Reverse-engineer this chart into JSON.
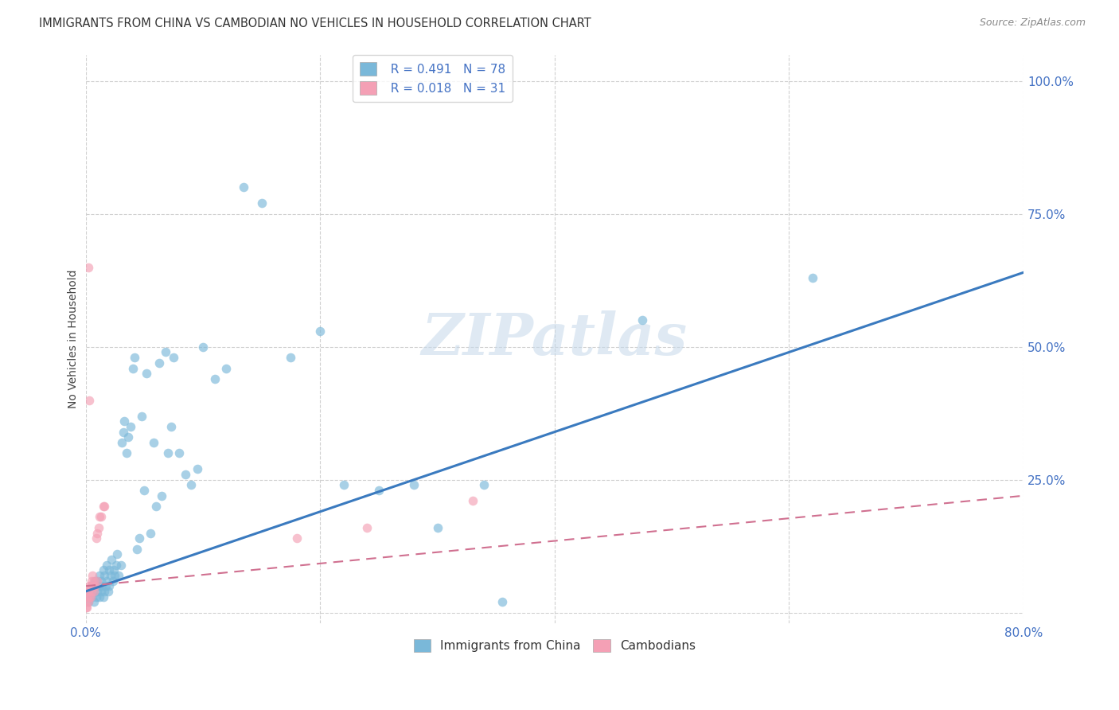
{
  "title": "IMMIGRANTS FROM CHINA VS CAMBODIAN NO VEHICLES IN HOUSEHOLD CORRELATION CHART",
  "source": "Source: ZipAtlas.com",
  "ylabel": "No Vehicles in Household",
  "xlim": [
    0.0,
    0.8
  ],
  "ylim": [
    -0.02,
    1.05
  ],
  "yticks": [
    0.0,
    0.25,
    0.5,
    0.75,
    1.0
  ],
  "ytick_labels": [
    "",
    "25.0%",
    "50.0%",
    "75.0%",
    "100.0%"
  ],
  "xticks": [
    0.0,
    0.2,
    0.4,
    0.6,
    0.8
  ],
  "xtick_labels": [
    "0.0%",
    "",
    "",
    "",
    "80.0%"
  ],
  "watermark": "ZIPatlas",
  "legend_r1": "R = 0.491",
  "legend_n1": "N = 78",
  "legend_r2": "R = 0.018",
  "legend_n2": "N = 31",
  "blue_color": "#7ab8d9",
  "pink_color": "#f4a0b5",
  "blue_line_color": "#3a7abf",
  "pink_line_color": "#d07090",
  "axis_text_color": "#4472c4",
  "title_color": "#333333",
  "source_color": "#888888",
  "grid_color": "#d0d0d0",
  "blue_scatter_x": [
    0.002,
    0.003,
    0.004,
    0.005,
    0.005,
    0.006,
    0.007,
    0.008,
    0.008,
    0.009,
    0.01,
    0.01,
    0.011,
    0.012,
    0.012,
    0.013,
    0.013,
    0.014,
    0.015,
    0.015,
    0.016,
    0.016,
    0.017,
    0.018,
    0.018,
    0.019,
    0.02,
    0.02,
    0.021,
    0.022,
    0.023,
    0.024,
    0.025,
    0.026,
    0.027,
    0.028,
    0.03,
    0.031,
    0.032,
    0.033,
    0.035,
    0.036,
    0.038,
    0.04,
    0.042,
    0.044,
    0.046,
    0.048,
    0.05,
    0.052,
    0.055,
    0.058,
    0.06,
    0.063,
    0.065,
    0.068,
    0.07,
    0.073,
    0.075,
    0.08,
    0.085,
    0.09,
    0.095,
    0.1,
    0.11,
    0.12,
    0.135,
    0.15,
    0.175,
    0.2,
    0.22,
    0.25,
    0.28,
    0.3,
    0.34,
    0.355,
    0.475,
    0.62
  ],
  "blue_scatter_y": [
    0.02,
    0.03,
    0.04,
    0.03,
    0.05,
    0.04,
    0.02,
    0.05,
    0.06,
    0.03,
    0.04,
    0.06,
    0.05,
    0.03,
    0.07,
    0.04,
    0.06,
    0.05,
    0.03,
    0.08,
    0.04,
    0.07,
    0.05,
    0.06,
    0.09,
    0.04,
    0.08,
    0.05,
    0.07,
    0.1,
    0.06,
    0.08,
    0.07,
    0.09,
    0.11,
    0.07,
    0.09,
    0.32,
    0.34,
    0.36,
    0.3,
    0.33,
    0.35,
    0.46,
    0.48,
    0.12,
    0.14,
    0.37,
    0.23,
    0.45,
    0.15,
    0.32,
    0.2,
    0.47,
    0.22,
    0.49,
    0.3,
    0.35,
    0.48,
    0.3,
    0.26,
    0.24,
    0.27,
    0.5,
    0.44,
    0.46,
    0.8,
    0.77,
    0.48,
    0.53,
    0.24,
    0.23,
    0.24,
    0.16,
    0.24,
    0.02,
    0.55,
    0.63
  ],
  "pink_scatter_x": [
    0.0,
    0.0,
    0.001,
    0.001,
    0.001,
    0.002,
    0.002,
    0.002,
    0.003,
    0.003,
    0.003,
    0.004,
    0.004,
    0.005,
    0.005,
    0.006,
    0.006,
    0.007,
    0.007,
    0.008,
    0.009,
    0.01,
    0.01,
    0.011,
    0.012,
    0.013,
    0.015,
    0.016,
    0.18,
    0.24,
    0.33
  ],
  "pink_scatter_y": [
    0.01,
    0.02,
    0.01,
    0.03,
    0.04,
    0.02,
    0.04,
    0.65,
    0.03,
    0.05,
    0.4,
    0.03,
    0.05,
    0.04,
    0.06,
    0.05,
    0.07,
    0.04,
    0.06,
    0.05,
    0.14,
    0.06,
    0.15,
    0.16,
    0.18,
    0.18,
    0.2,
    0.2,
    0.14,
    0.16,
    0.21
  ],
  "blue_line_x": [
    0.0,
    0.8
  ],
  "blue_line_y": [
    0.04,
    0.64
  ],
  "pink_line_x": [
    0.0,
    0.8
  ],
  "pink_line_y": [
    0.05,
    0.22
  ],
  "figsize": [
    14.06,
    8.92
  ],
  "dpi": 100
}
